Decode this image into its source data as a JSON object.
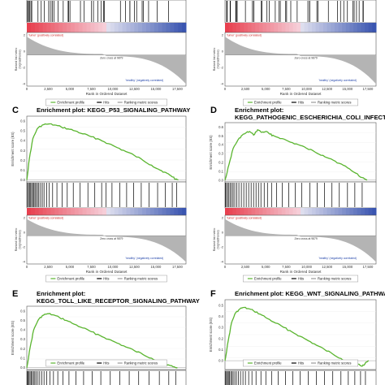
{
  "figure": {
    "panels": [
      {
        "id": "A",
        "letter": "",
        "title_lines": [],
        "es_label": "",
        "rank_label": [
          "Ranked list metric",
          "(Signal2Noise)"
        ],
        "x_label": "Rank in Ordered Dataset",
        "x_ticks": [
          "0",
          "2,500",
          "5,000",
          "7,500",
          "10,000",
          "12,500",
          "15,000",
          "17,500"
        ],
        "zero_cross": "Zero cross at 9879",
        "tumor_label": "'tumor' (positively correlated)",
        "healthy_label": "'healthy' (negatively correlated)",
        "legend": [
          "Enrichment profile",
          "Hits",
          "Ranking metric scores"
        ],
        "rank_ticks": [
          "2",
          "0",
          "-2",
          "-4"
        ]
      },
      {
        "id": "B",
        "letter": "",
        "title_lines": [],
        "es_label": "",
        "rank_label": [
          "Ranked list metric",
          "(Signal2Noise)"
        ],
        "x_label": "Rank in Ordered Dataset",
        "x_ticks": [
          "0",
          "2,500",
          "5,000",
          "7,500",
          "10,000",
          "12,500",
          "15,000",
          "17,500"
        ],
        "zero_cross": "Zero cross at 9879",
        "tumor_label": "'tumor' (positively correlated)",
        "healthy_label": "'healthy' (negatively correlated)",
        "legend": [
          "Enrichment profile",
          "Hits",
          "Ranking metric scores"
        ],
        "rank_ticks": [
          "2",
          "0",
          "-2",
          "-4"
        ]
      },
      {
        "id": "C",
        "letter": "C",
        "title_lines": [
          "Enrichment plot: KEGG_P53_SIGNALING_PATHWAY"
        ],
        "es_label": "Enrichment score (ES)",
        "es_ticks": [
          "0.6",
          "0.5",
          "0.4",
          "0.3",
          "0.2",
          "0.1",
          "0.0"
        ],
        "rank_label": [
          "Ranked list metric",
          "(Signal2Noise)"
        ],
        "x_label": "Rank in Ordered Dataset",
        "x_ticks": [
          "0",
          "2,500",
          "5,000",
          "7,500",
          "10,000",
          "12,500",
          "15,000",
          "17,500"
        ],
        "zero_cross": "Zero cross at 9879",
        "tumor_label": "'tumor' (positively correlated)",
        "healthy_label": "'healthy' (negatively correlated)",
        "legend": [
          "Enrichment profile",
          "Hits",
          "Ranking metric scores"
        ],
        "rank_ticks": [
          "2",
          "0",
          "-2",
          "-4"
        ]
      },
      {
        "id": "D",
        "letter": "D",
        "title_lines": [
          "Enrichment plot:",
          "KEGG_PATHOGENIC_ESCHERICHIA_COLI_INFECTION"
        ],
        "es_label": "Enrichment score (ES)",
        "es_ticks": [
          "0.6",
          "0.5",
          "0.4",
          "0.3",
          "0.2",
          "0.1",
          "0.0"
        ],
        "rank_label": [
          "Ranked list metric",
          "(Signal2Noise)"
        ],
        "x_label": "Rank in Ordered Dataset",
        "x_ticks": [
          "0",
          "2,500",
          "5,000",
          "7,500",
          "10,000",
          "12,500",
          "15,000",
          "17,500"
        ],
        "zero_cross": "Zero cross at 9879",
        "tumor_label": "'tumor' (positively correlated)",
        "healthy_label": "'healthy' (negatively correlated)",
        "legend": [
          "Enrichment profile",
          "Hits",
          "Ranking metric scores"
        ],
        "rank_ticks": [
          "2",
          "0",
          "-2",
          "-4"
        ]
      },
      {
        "id": "E",
        "letter": "E",
        "title_lines": [
          "Enrichment plot:",
          "KEGG_TOLL_LIKE_RECEPTOR_SIGNALING_PATHWAY"
        ],
        "es_label": "Enrichment score (ES)",
        "es_ticks": [
          "0.6",
          "0.5",
          "0.4",
          "0.3",
          "0.2",
          "0.1",
          "0.0"
        ],
        "legend": [
          "Enrichment profile",
          "Hits",
          "Ranking metric scores"
        ]
      },
      {
        "id": "F",
        "letter": "F",
        "title_lines": [
          "Enrichment plot: KEGG_WNT_SIGNALING_PATHWAY"
        ],
        "es_label": "Enrichment score (ES)",
        "es_ticks": [
          "0.5",
          "0.4",
          "0.3",
          "0.2",
          "0.1",
          "0.0"
        ],
        "legend": [
          "Enrichment profile",
          "Hits",
          "Ranking metric scores"
        ]
      }
    ]
  },
  "colors": {
    "enrichment_line": "#5ab52f",
    "hits": "#000000",
    "ranking_fill": "#b4b4b4",
    "tumor_text": "#cc2222",
    "healthy_text": "#2244aa",
    "heat_red": "#e8404f",
    "heat_blue": "#3a55b0",
    "letter": "#000000"
  },
  "chart_data": [
    {
      "panel": "C",
      "type": "line",
      "title": "Enrichment plot: KEGG_P53_SIGNALING_PATHWAY",
      "xlabel": "Rank in Ordered Dataset",
      "ylabel": "Enrichment score (ES)",
      "xlim": [
        0,
        18500
      ],
      "ylim": [
        -0.02,
        0.65
      ],
      "x": [
        0,
        300,
        700,
        1200,
        1800,
        2500,
        3200,
        4000,
        4800,
        5600,
        6500,
        7500,
        8500,
        9500,
        10500,
        11500,
        12500,
        13500,
        14500,
        15300,
        16000,
        16600,
        17000,
        17300,
        17600
      ],
      "y": [
        0.0,
        0.22,
        0.42,
        0.52,
        0.56,
        0.57,
        0.56,
        0.54,
        0.52,
        0.5,
        0.47,
        0.44,
        0.41,
        0.37,
        0.33,
        0.29,
        0.25,
        0.2,
        0.15,
        0.11,
        0.08,
        0.05,
        0.03,
        0.01,
        0.0
      ],
      "hits": [
        80,
        200,
        310,
        450,
        560,
        700,
        830,
        950,
        1100,
        1250,
        1400,
        1600,
        1800,
        2000,
        2300,
        2600,
        3000,
        3500,
        4100,
        4700,
        5400,
        6200,
        7100,
        7900,
        8700,
        9200,
        9900,
        10800,
        11600,
        12400,
        13300,
        14200,
        15200,
        16100,
        16900,
        17400
      ]
    },
    {
      "panel": "D",
      "type": "line",
      "title": "Enrichment plot: KEGG_PATHOGENIC_ESCHERICHIA_COLI_INFECTION",
      "xlabel": "Rank in Ordered Dataset",
      "ylabel": "Enrichment score (ES)",
      "xlim": [
        0,
        18500
      ],
      "ylim": [
        -0.02,
        0.65
      ],
      "x": [
        0,
        500,
        1000,
        1500,
        2000,
        2500,
        3000,
        3500,
        4000,
        4500,
        5000,
        5500,
        6000,
        7000,
        8000,
        9000,
        10000,
        11000,
        12000,
        13000,
        14000,
        15000,
        16000,
        16800,
        17400
      ],
      "y": [
        0.0,
        0.18,
        0.36,
        0.44,
        0.5,
        0.53,
        0.55,
        0.51,
        0.57,
        0.54,
        0.55,
        0.52,
        0.5,
        0.47,
        0.43,
        0.4,
        0.36,
        0.32,
        0.28,
        0.24,
        0.19,
        0.14,
        0.08,
        0.03,
        0.0
      ],
      "hits": [
        60,
        180,
        320,
        480,
        650,
        820,
        1000,
        1200,
        1450,
        1700,
        2000,
        2300,
        2600,
        2900,
        3200,
        3500,
        3800,
        4100,
        4400,
        4800,
        5200,
        5700,
        6300,
        7000,
        7800,
        8600,
        9400,
        10400,
        11300,
        12200,
        13100,
        14000,
        15000,
        15900,
        16800
      ]
    },
    {
      "panel": "E",
      "type": "line",
      "title": "Enrichment plot: KEGG_TOLL_LIKE_RECEPTOR_SIGNALING_PATHWAY",
      "xlabel": "",
      "ylabel": "Enrichment score (ES)",
      "xlim": [
        0,
        18500
      ],
      "ylim": [
        -0.02,
        0.65
      ],
      "x": [
        0,
        400,
        800,
        1300,
        1800,
        2400,
        3000,
        3800,
        4600,
        5500,
        6500,
        7500,
        8500,
        9500,
        10500,
        11500,
        12500,
        13500,
        14500,
        15500,
        16300,
        17000,
        17500
      ],
      "y": [
        0.0,
        0.22,
        0.4,
        0.5,
        0.55,
        0.57,
        0.56,
        0.53,
        0.5,
        0.46,
        0.42,
        0.38,
        0.34,
        0.3,
        0.26,
        0.22,
        0.18,
        0.14,
        0.1,
        0.06,
        0.03,
        0.01,
        0.0
      ],
      "hits": [
        50,
        150,
        260,
        380,
        500,
        640,
        780,
        930,
        1100,
        1300,
        1500,
        1750,
        2000,
        2300,
        2700,
        3100,
        3600,
        4200,
        4900,
        5700,
        6600,
        7600,
        8600,
        9700,
        10800,
        11900,
        13000,
        14200,
        15400,
        16500,
        17300
      ]
    },
    {
      "panel": "F",
      "type": "line",
      "title": "Enrichment plot: KEGG_WNT_SIGNALING_PATHWAY",
      "xlabel": "",
      "ylabel": "Enrichment score (ES)",
      "xlim": [
        0,
        18500
      ],
      "ylim": [
        -0.08,
        0.55
      ],
      "x": [
        0,
        400,
        800,
        1200,
        1700,
        2200,
        2800,
        3500,
        4300,
        5200,
        6200,
        7200,
        8200,
        9200,
        10200,
        11200,
        12200,
        13200,
        14200,
        15000,
        15700,
        16300,
        16800,
        17200,
        17600
      ],
      "y": [
        0.0,
        0.18,
        0.34,
        0.42,
        0.46,
        0.48,
        0.47,
        0.45,
        0.42,
        0.38,
        0.34,
        0.3,
        0.26,
        0.22,
        0.18,
        0.14,
        0.1,
        0.06,
        0.02,
        -0.01,
        -0.03,
        -0.03,
        -0.05,
        -0.02,
        0.0
      ],
      "hits": [
        70,
        190,
        300,
        420,
        560,
        700,
        850,
        1000,
        1200,
        1400,
        1650,
        1900,
        2200,
        2500,
        2900,
        3300,
        3800,
        4400,
        5000,
        5700,
        6500,
        7400,
        8300,
        9200,
        10200,
        11200,
        12200,
        13200,
        14200,
        15100,
        15900,
        16600,
        17200
      ]
    }
  ]
}
